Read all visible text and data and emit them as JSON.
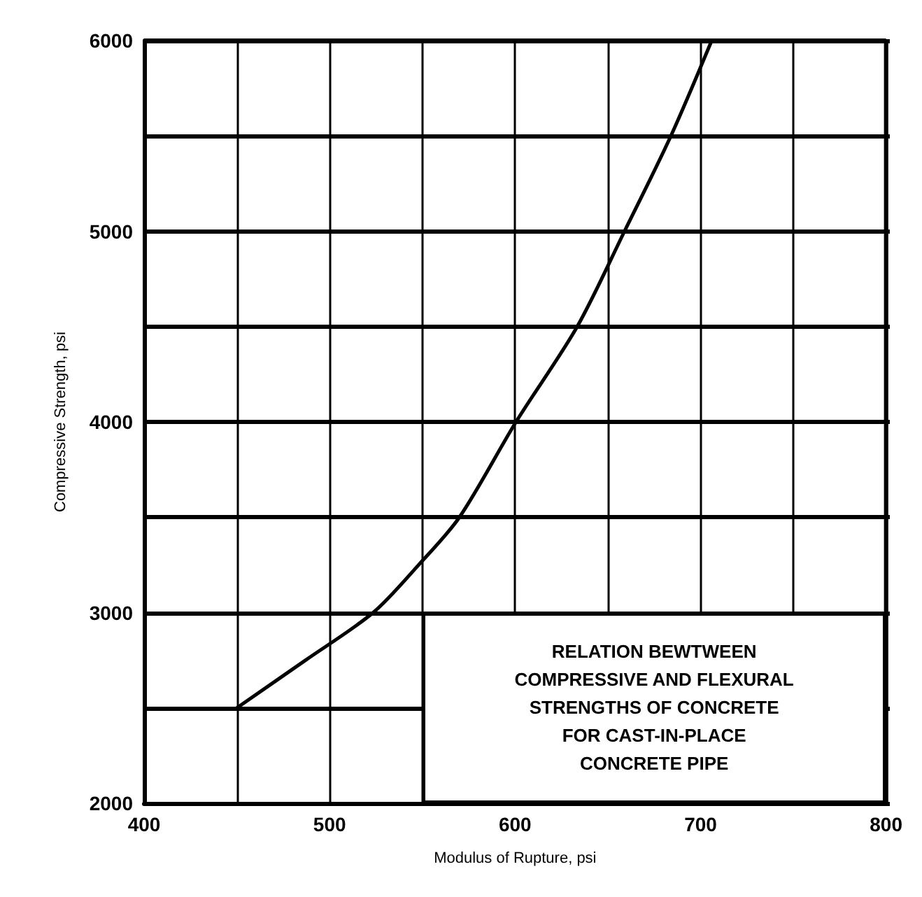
{
  "chart_data": {
    "type": "line",
    "xlabel": "Modulus of Rupture, psi",
    "ylabel": "Compressive Strength, psi",
    "x": [
      450,
      487,
      523.5,
      548,
      570,
      600.5,
      633.5,
      659,
      684,
      706
    ],
    "values": [
      2500,
      2750,
      3000,
      3250,
      3500,
      4000,
      4500,
      5000,
      5500,
      6000
    ],
    "color": "#000000",
    "marker": "none",
    "line_style": "solid",
    "grid": true,
    "xlim": [
      400,
      800
    ],
    "xticks": [
      400,
      {
        "value": 450,
        "label": null
      },
      500,
      {
        "value": 550,
        "label": null
      },
      600,
      {
        "value": 650,
        "label": null
      },
      700,
      {
        "value": 750,
        "label": null
      },
      800
    ],
    "ylim": [
      2000,
      6000
    ],
    "yticks": [
      2000,
      {
        "value": 2500,
        "label": null
      },
      3000,
      {
        "value": 3500,
        "label": null
      },
      4000,
      {
        "value": 4500,
        "label": null
      },
      5000,
      {
        "value": 5500,
        "label": null
      },
      6000
    ],
    "annotations": [
      "RELATION BEWTWEEN\nCOMPRESSIVE AND FLEXURAL\nSTRENGTHS OF CONCRETE\nFOR CAST-IN-PLACE\nCONCRETE PIPE"
    ]
  }
}
